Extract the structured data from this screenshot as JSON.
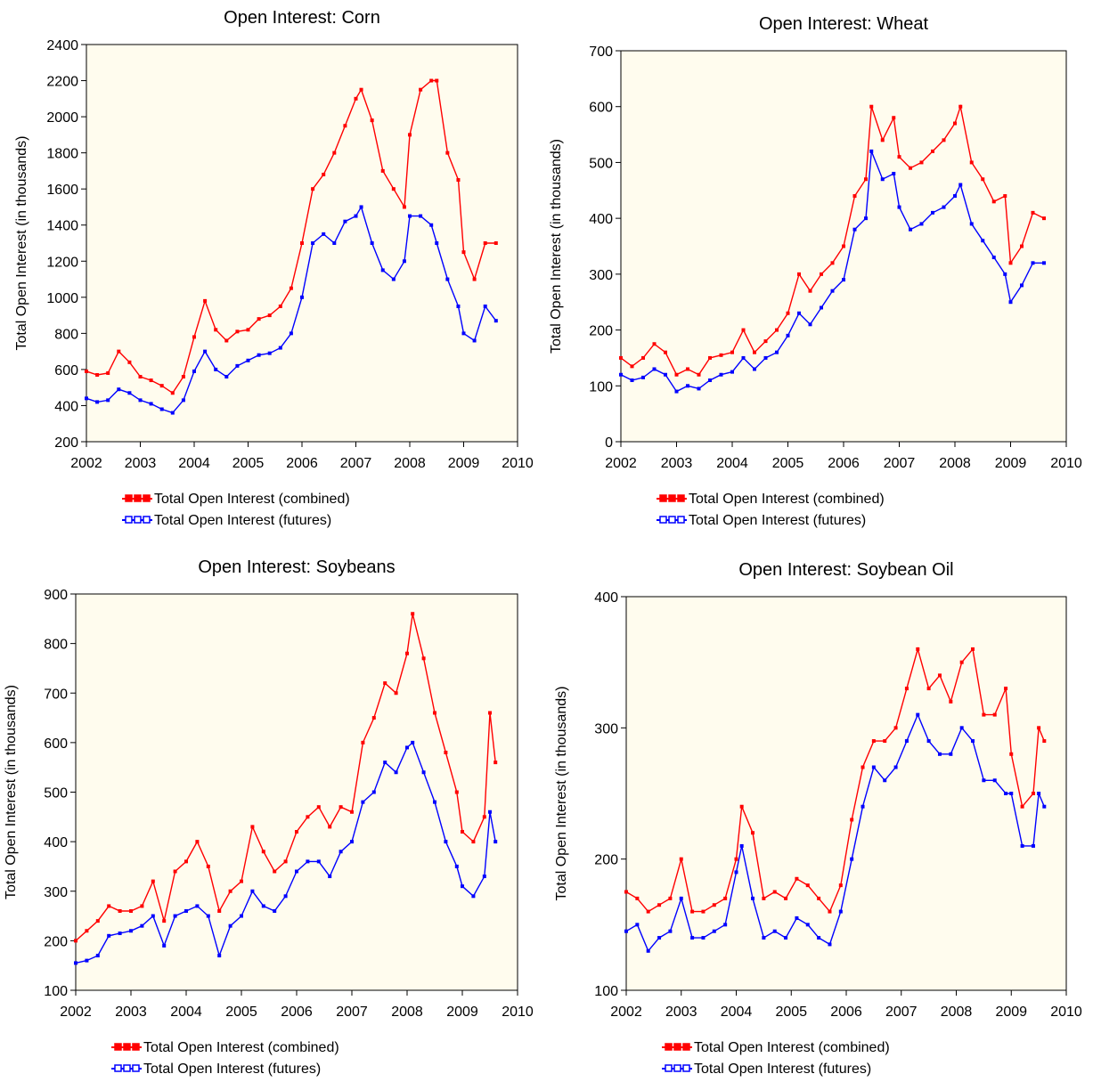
{
  "chart_data": [
    {
      "type": "line",
      "title": "Open Interest: Corn",
      "ylabel": "Total Open Interest (in thousands)",
      "xlabel": "",
      "xlim": [
        2002,
        2010
      ],
      "ylim": [
        200,
        2400
      ],
      "xticks": [
        2002,
        2003,
        2004,
        2005,
        2006,
        2007,
        2008,
        2009,
        2010
      ],
      "yticks": [
        200,
        400,
        600,
        800,
        1000,
        1200,
        1400,
        1600,
        1800,
        2000,
        2200,
        2400
      ],
      "background": "#fffcee",
      "legend_placement": "bottom",
      "series": [
        {
          "name": "Total Open Interest (combined)",
          "color": "#ff0000",
          "x": [
            2002.0,
            2002.2,
            2002.4,
            2002.6,
            2002.8,
            2003.0,
            2003.2,
            2003.4,
            2003.6,
            2003.8,
            2004.0,
            2004.2,
            2004.4,
            2004.6,
            2004.8,
            2005.0,
            2005.2,
            2005.4,
            2005.6,
            2005.8,
            2006.0,
            2006.2,
            2006.4,
            2006.6,
            2006.8,
            2007.0,
            2007.1,
            2007.3,
            2007.5,
            2007.7,
            2007.9,
            2008.0,
            2008.2,
            2008.4,
            2008.5,
            2008.7,
            2008.9,
            2009.0,
            2009.2,
            2009.4,
            2009.6
          ],
          "y": [
            590,
            570,
            580,
            700,
            640,
            560,
            540,
            510,
            470,
            560,
            780,
            980,
            820,
            760,
            810,
            820,
            880,
            900,
            950,
            1050,
            1300,
            1600,
            1680,
            1800,
            1950,
            2100,
            2150,
            1980,
            1700,
            1600,
            1500,
            1900,
            2150,
            2200,
            2200,
            1800,
            1650,
            1250,
            1100,
            1300,
            1300
          ]
        },
        {
          "name": "Total Open Interest (futures)",
          "color": "#0000ff",
          "x": [
            2002.0,
            2002.2,
            2002.4,
            2002.6,
            2002.8,
            2003.0,
            2003.2,
            2003.4,
            2003.6,
            2003.8,
            2004.0,
            2004.2,
            2004.4,
            2004.6,
            2004.8,
            2005.0,
            2005.2,
            2005.4,
            2005.6,
            2005.8,
            2006.0,
            2006.2,
            2006.4,
            2006.6,
            2006.8,
            2007.0,
            2007.1,
            2007.3,
            2007.5,
            2007.7,
            2007.9,
            2008.0,
            2008.2,
            2008.4,
            2008.5,
            2008.7,
            2008.9,
            2009.0,
            2009.2,
            2009.4,
            2009.6
          ],
          "y": [
            440,
            420,
            430,
            490,
            470,
            430,
            410,
            380,
            360,
            430,
            590,
            700,
            600,
            560,
            620,
            650,
            680,
            690,
            720,
            800,
            1000,
            1300,
            1350,
            1300,
            1420,
            1450,
            1500,
            1300,
            1150,
            1100,
            1200,
            1450,
            1450,
            1400,
            1300,
            1100,
            950,
            800,
            760,
            950,
            870
          ]
        }
      ]
    },
    {
      "type": "line",
      "title": "Open Interest: Wheat",
      "ylabel": "Total Open Interest (in thousands)",
      "xlabel": "",
      "xlim": [
        2002,
        2010
      ],
      "ylim": [
        0,
        700
      ],
      "xticks": [
        2002,
        2003,
        2004,
        2005,
        2006,
        2007,
        2008,
        2009,
        2010
      ],
      "yticks": [
        0,
        100,
        200,
        300,
        400,
        500,
        600,
        700
      ],
      "background": "#fffcee",
      "legend_placement": "bottom",
      "series": [
        {
          "name": "Total Open Interest (combined)",
          "color": "#ff0000",
          "x": [
            2002.0,
            2002.2,
            2002.4,
            2002.6,
            2002.8,
            2003.0,
            2003.2,
            2003.4,
            2003.6,
            2003.8,
            2004.0,
            2004.2,
            2004.4,
            2004.6,
            2004.8,
            2005.0,
            2005.2,
            2005.4,
            2005.6,
            2005.8,
            2006.0,
            2006.2,
            2006.4,
            2006.5,
            2006.7,
            2006.9,
            2007.0,
            2007.2,
            2007.4,
            2007.6,
            2007.8,
            2008.0,
            2008.1,
            2008.3,
            2008.5,
            2008.7,
            2008.9,
            2009.0,
            2009.2,
            2009.4,
            2009.6
          ],
          "y": [
            150,
            135,
            150,
            175,
            160,
            120,
            130,
            120,
            150,
            155,
            160,
            200,
            160,
            180,
            200,
            230,
            300,
            270,
            300,
            320,
            350,
            440,
            470,
            600,
            540,
            580,
            510,
            490,
            500,
            520,
            540,
            570,
            600,
            500,
            470,
            430,
            440,
            320,
            350,
            410,
            400
          ]
        },
        {
          "name": "Total Open Interest (futures)",
          "color": "#0000ff",
          "x": [
            2002.0,
            2002.2,
            2002.4,
            2002.6,
            2002.8,
            2003.0,
            2003.2,
            2003.4,
            2003.6,
            2003.8,
            2004.0,
            2004.2,
            2004.4,
            2004.6,
            2004.8,
            2005.0,
            2005.2,
            2005.4,
            2005.6,
            2005.8,
            2006.0,
            2006.2,
            2006.4,
            2006.5,
            2006.7,
            2006.9,
            2007.0,
            2007.2,
            2007.4,
            2007.6,
            2007.8,
            2008.0,
            2008.1,
            2008.3,
            2008.5,
            2008.7,
            2008.9,
            2009.0,
            2009.2,
            2009.4,
            2009.6
          ],
          "y": [
            120,
            110,
            115,
            130,
            120,
            90,
            100,
            95,
            110,
            120,
            125,
            150,
            130,
            150,
            160,
            190,
            230,
            210,
            240,
            270,
            290,
            380,
            400,
            520,
            470,
            480,
            420,
            380,
            390,
            410,
            420,
            440,
            460,
            390,
            360,
            330,
            300,
            250,
            280,
            320,
            320
          ]
        }
      ]
    },
    {
      "type": "line",
      "title": "Open Interest: Soybeans",
      "ylabel": "Total Open Interest (in thousands)",
      "xlabel": "",
      "xlim": [
        2002,
        2010
      ],
      "ylim": [
        100,
        900
      ],
      "xticks": [
        2002,
        2003,
        2004,
        2005,
        2006,
        2007,
        2008,
        2009,
        2010
      ],
      "yticks": [
        100,
        200,
        300,
        400,
        500,
        600,
        700,
        800,
        900
      ],
      "background": "#fffcee",
      "legend_placement": "bottom",
      "series": [
        {
          "name": "Total Open Interest (combined)",
          "color": "#ff0000",
          "x": [
            2002.0,
            2002.2,
            2002.4,
            2002.6,
            2002.8,
            2003.0,
            2003.2,
            2003.4,
            2003.6,
            2003.8,
            2004.0,
            2004.2,
            2004.4,
            2004.6,
            2004.8,
            2005.0,
            2005.2,
            2005.4,
            2005.6,
            2005.8,
            2006.0,
            2006.2,
            2006.4,
            2006.6,
            2006.8,
            2007.0,
            2007.2,
            2007.4,
            2007.6,
            2007.8,
            2008.0,
            2008.1,
            2008.3,
            2008.5,
            2008.7,
            2008.9,
            2009.0,
            2009.2,
            2009.4,
            2009.5,
            2009.6
          ],
          "y": [
            200,
            220,
            240,
            270,
            260,
            260,
            270,
            320,
            240,
            340,
            360,
            400,
            350,
            260,
            300,
            320,
            430,
            380,
            340,
            360,
            420,
            450,
            470,
            430,
            470,
            460,
            600,
            650,
            720,
            700,
            780,
            860,
            770,
            660,
            580,
            500,
            420,
            400,
            450,
            660,
            560
          ]
        },
        {
          "name": "Total Open Interest (futures)",
          "color": "#0000ff",
          "x": [
            2002.0,
            2002.2,
            2002.4,
            2002.6,
            2002.8,
            2003.0,
            2003.2,
            2003.4,
            2003.6,
            2003.8,
            2004.0,
            2004.2,
            2004.4,
            2004.6,
            2004.8,
            2005.0,
            2005.2,
            2005.4,
            2005.6,
            2005.8,
            2006.0,
            2006.2,
            2006.4,
            2006.6,
            2006.8,
            2007.0,
            2007.2,
            2007.4,
            2007.6,
            2007.8,
            2008.0,
            2008.1,
            2008.3,
            2008.5,
            2008.7,
            2008.9,
            2009.0,
            2009.2,
            2009.4,
            2009.5,
            2009.6
          ],
          "y": [
            155,
            160,
            170,
            210,
            215,
            220,
            230,
            250,
            190,
            250,
            260,
            270,
            250,
            170,
            230,
            250,
            300,
            270,
            260,
            290,
            340,
            360,
            360,
            330,
            380,
            400,
            480,
            500,
            560,
            540,
            590,
            600,
            540,
            480,
            400,
            350,
            310,
            290,
            330,
            460,
            400
          ]
        }
      ]
    },
    {
      "type": "line",
      "title": "Open Interest: Soybean Oil",
      "ylabel": "Total Open Interest (in thousands)",
      "xlabel": "",
      "xlim": [
        2002,
        2010
      ],
      "ylim": [
        100,
        400
      ],
      "xticks": [
        2002,
        2003,
        2004,
        2005,
        2006,
        2007,
        2008,
        2009,
        2010
      ],
      "yticks": [
        100,
        200,
        300,
        400
      ],
      "background": "#fffcee",
      "legend_placement": "bottom",
      "series": [
        {
          "name": "Total Open Interest (combined)",
          "color": "#ff0000",
          "x": [
            2002.0,
            2002.2,
            2002.4,
            2002.6,
            2002.8,
            2003.0,
            2003.2,
            2003.4,
            2003.6,
            2003.8,
            2004.0,
            2004.1,
            2004.3,
            2004.5,
            2004.7,
            2004.9,
            2005.1,
            2005.3,
            2005.5,
            2005.7,
            2005.9,
            2006.1,
            2006.3,
            2006.5,
            2006.7,
            2006.9,
            2007.1,
            2007.3,
            2007.5,
            2007.7,
            2007.9,
            2008.1,
            2008.3,
            2008.5,
            2008.7,
            2008.9,
            2009.0,
            2009.2,
            2009.4,
            2009.5,
            2009.6
          ],
          "y": [
            175,
            170,
            160,
            165,
            170,
            200,
            160,
            160,
            165,
            170,
            200,
            240,
            220,
            170,
            175,
            170,
            185,
            180,
            170,
            160,
            180,
            230,
            270,
            290,
            290,
            300,
            330,
            360,
            330,
            340,
            320,
            350,
            360,
            310,
            310,
            330,
            280,
            240,
            250,
            300,
            290
          ]
        },
        {
          "name": "Total Open Interest (futures)",
          "color": "#0000ff",
          "x": [
            2002.0,
            2002.2,
            2002.4,
            2002.6,
            2002.8,
            2003.0,
            2003.2,
            2003.4,
            2003.6,
            2003.8,
            2004.0,
            2004.1,
            2004.3,
            2004.5,
            2004.7,
            2004.9,
            2005.1,
            2005.3,
            2005.5,
            2005.7,
            2005.9,
            2006.1,
            2006.3,
            2006.5,
            2006.7,
            2006.9,
            2007.1,
            2007.3,
            2007.5,
            2007.7,
            2007.9,
            2008.1,
            2008.3,
            2008.5,
            2008.7,
            2008.9,
            2009.0,
            2009.2,
            2009.4,
            2009.5,
            2009.6
          ],
          "y": [
            145,
            150,
            130,
            140,
            145,
            170,
            140,
            140,
            145,
            150,
            190,
            210,
            170,
            140,
            145,
            140,
            155,
            150,
            140,
            135,
            160,
            200,
            240,
            270,
            260,
            270,
            290,
            310,
            290,
            280,
            280,
            300,
            290,
            260,
            260,
            250,
            250,
            210,
            210,
            250,
            240
          ]
        }
      ]
    }
  ]
}
